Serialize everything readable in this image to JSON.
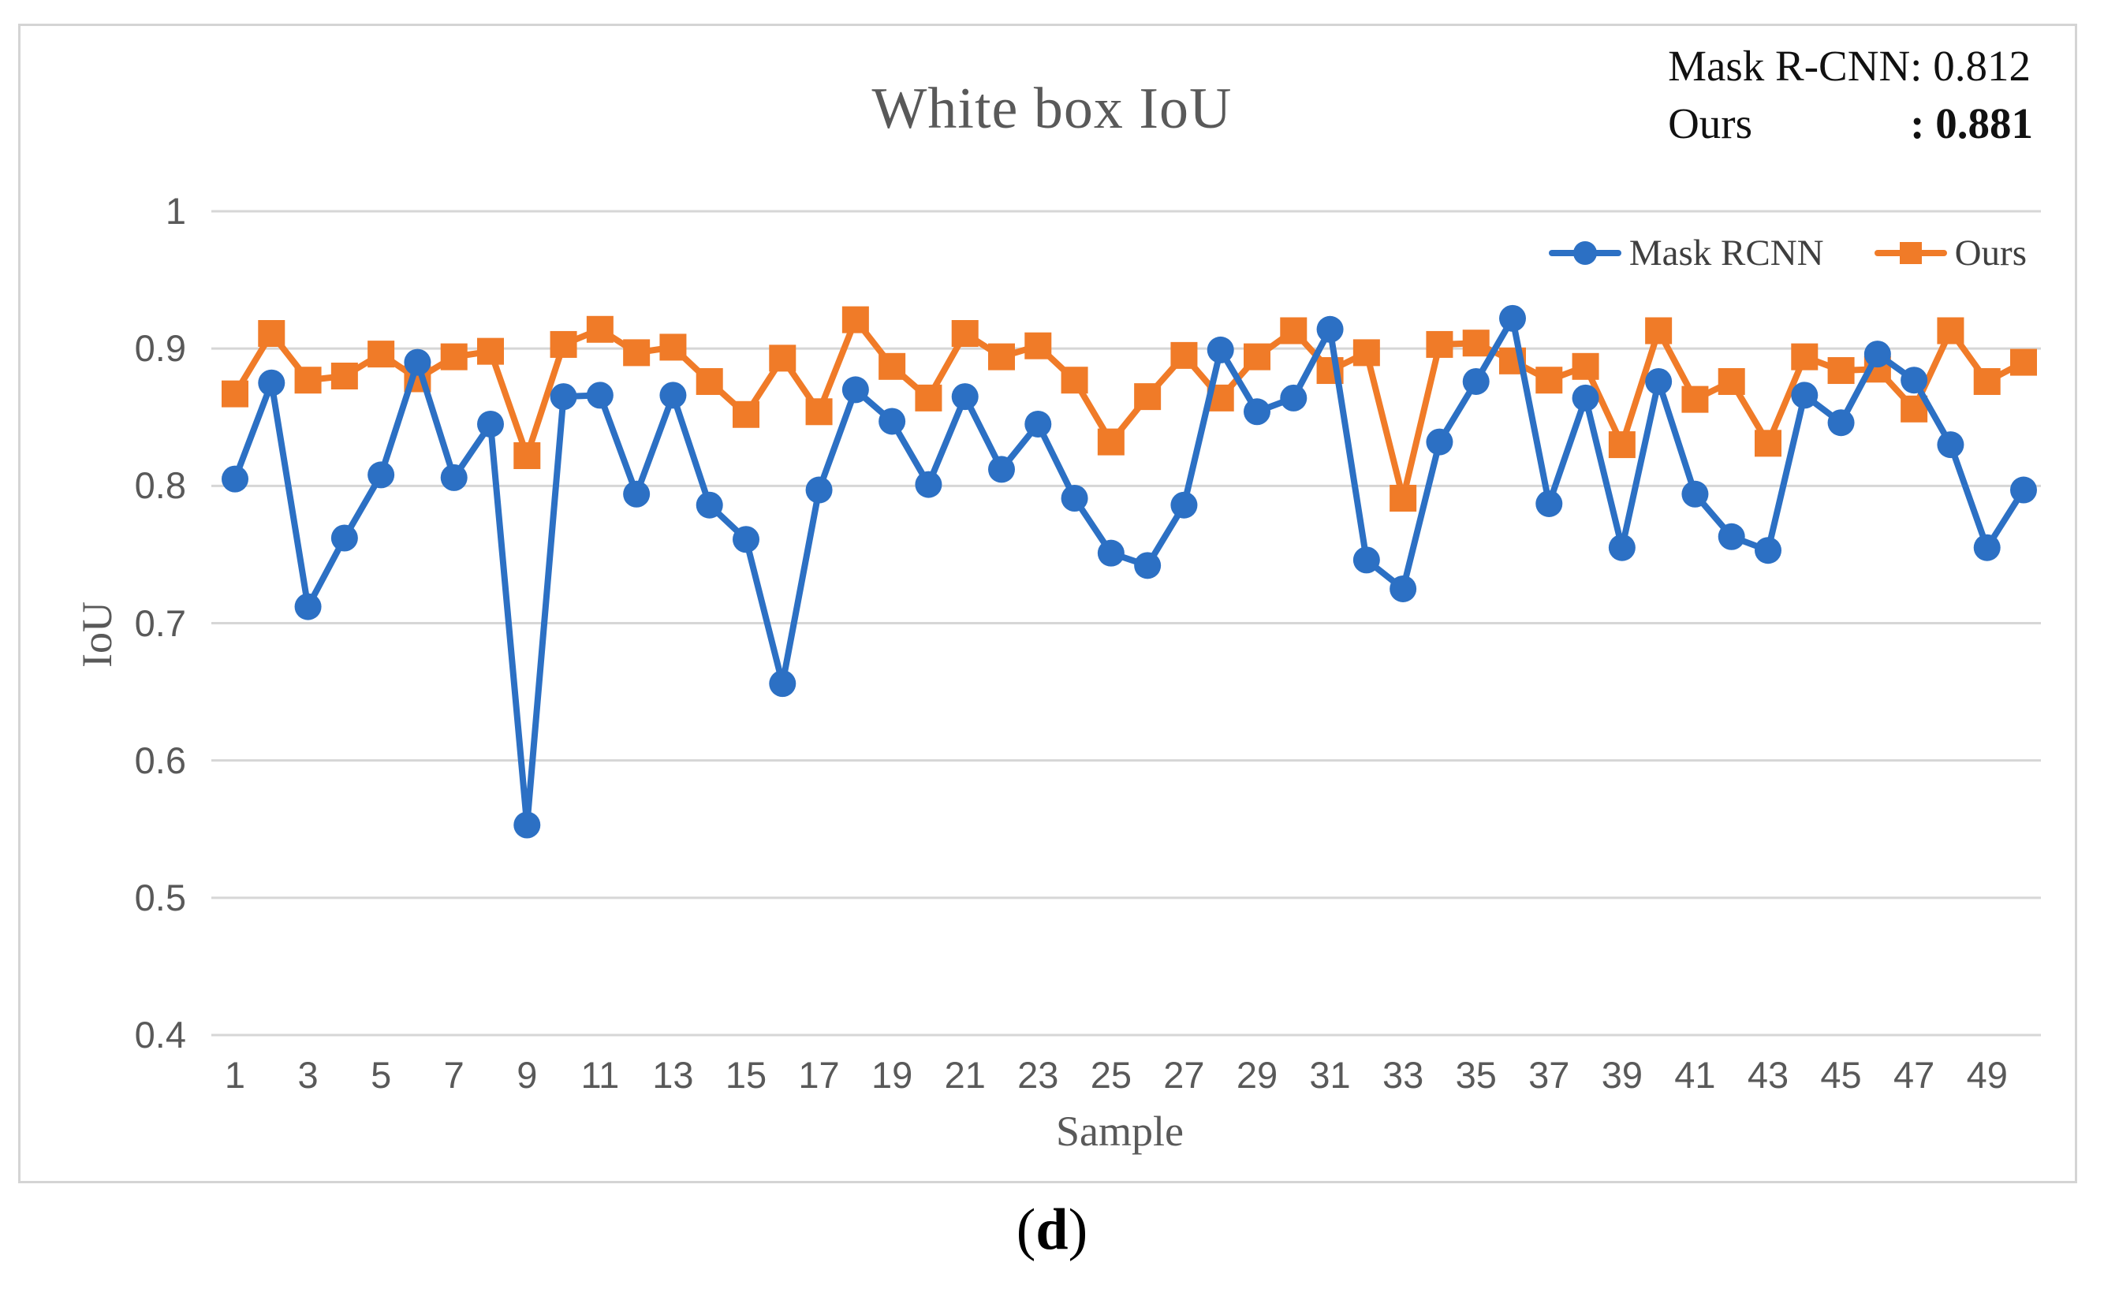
{
  "figure": {
    "title": "White box IoU",
    "y_axis_title": "IoU",
    "x_axis_title": "Sample",
    "caption": {
      "open": "(",
      "letter": "d",
      "close": ")"
    },
    "annotation": {
      "rows": [
        {
          "label": "Mask R-CNN",
          "value": ": 0.812",
          "bold": false
        },
        {
          "label": "Ours",
          "value": ": 0.881",
          "bold": true
        }
      ]
    },
    "colors": {
      "mask_rcnn_blue": "#2C70C4",
      "ours_orange": "#F07B28",
      "gridline": "#D6D6D6",
      "axis_text": "#595959",
      "title_text": "#595959",
      "legend_text": "#3F3F3F",
      "border": "#D4D4D4",
      "background": "#FFFFFF"
    }
  },
  "chart_data": {
    "type": "line",
    "title": "White box IoU",
    "xlabel": "Sample",
    "ylabel": "IoU",
    "ylim": [
      0.4,
      1.0
    ],
    "grid": true,
    "legend_position": "top-right",
    "x": [
      1,
      2,
      3,
      4,
      5,
      6,
      7,
      8,
      9,
      10,
      11,
      12,
      13,
      14,
      15,
      16,
      17,
      18,
      19,
      20,
      21,
      22,
      23,
      24,
      25,
      26,
      27,
      28,
      29,
      30,
      31,
      32,
      33,
      34,
      35,
      36,
      37,
      38,
      39,
      40,
      41,
      42,
      43,
      44,
      45,
      46,
      47,
      48,
      49,
      50
    ],
    "xtick_labels": [
      "1",
      "3",
      "5",
      "7",
      "9",
      "11",
      "13",
      "15",
      "17",
      "19",
      "21",
      "23",
      "25",
      "27",
      "29",
      "31",
      "33",
      "35",
      "37",
      "39",
      "41",
      "43",
      "45",
      "47",
      "49"
    ],
    "ytick_labels": [
      "1",
      "0.9",
      "0.8",
      "0.7",
      "0.6",
      "0.5",
      "0.4"
    ],
    "ytick_values": [
      1.0,
      0.9,
      0.8,
      0.7,
      0.6,
      0.5,
      0.4
    ],
    "series": [
      {
        "name": "Mask RCNN",
        "marker": "circle",
        "color": "#2C70C4",
        "mean": 0.812,
        "values": [
          0.805,
          0.875,
          0.712,
          0.762,
          0.808,
          0.89,
          0.806,
          0.845,
          0.553,
          0.865,
          0.866,
          0.794,
          0.866,
          0.786,
          0.761,
          0.656,
          0.797,
          0.87,
          0.847,
          0.801,
          0.865,
          0.812,
          0.845,
          0.791,
          0.751,
          0.742,
          0.786,
          0.899,
          0.854,
          0.864,
          0.914,
          0.746,
          0.725,
          0.832,
          0.876,
          0.922,
          0.787,
          0.864,
          0.755,
          0.876,
          0.794,
          0.763,
          0.753,
          0.866,
          0.846,
          0.896,
          0.877,
          0.83,
          0.755,
          0.797
        ]
      },
      {
        "name": "Ours",
        "marker": "square",
        "color": "#F07B28",
        "mean": 0.881,
        "values": [
          0.867,
          0.911,
          0.877,
          0.88,
          0.896,
          0.878,
          0.894,
          0.898,
          0.822,
          0.903,
          0.914,
          0.897,
          0.901,
          0.876,
          0.852,
          0.893,
          0.854,
          0.921,
          0.887,
          0.864,
          0.911,
          0.894,
          0.902,
          0.877,
          0.832,
          0.865,
          0.895,
          0.864,
          0.894,
          0.913,
          0.884,
          0.897,
          0.791,
          0.903,
          0.904,
          0.891,
          0.877,
          0.887,
          0.83,
          0.913,
          0.863,
          0.876,
          0.831,
          0.894,
          0.884,
          0.885,
          0.856,
          0.913,
          0.876,
          0.89
        ]
      }
    ]
  }
}
